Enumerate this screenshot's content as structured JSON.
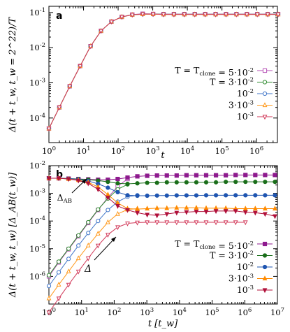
{
  "colors": {
    "T5e-2": "#b44fb4",
    "T3e-2": "#2e8b2e",
    "T1e-2": "#3f74c8",
    "T3e-3": "#ff9a1e",
    "T1e-3": "#d23a5a",
    "panel_a_line": "#c0304f"
  },
  "chart_data": [
    {
      "type": "line",
      "panel_label": "a",
      "xlabel": "t",
      "ylabel": "Δ(t + t_w, t_w = 2^22)/T",
      "xscale": "log",
      "yscale": "log",
      "xlim": [
        1,
        4000000
      ],
      "ylim": [
        2e-05,
        0.15
      ],
      "xticks": [
        "10^0",
        "10^1",
        "10^2",
        "10^3",
        "10^4",
        "10^5",
        "10^6"
      ],
      "yticks": [
        "10^-4",
        "10^-3",
        "10^-2",
        "10^-1"
      ],
      "legend": [
        "T = T_clone = 5·10^-2",
        "T = 3·10^-2",
        "10^-2",
        "3·10^-3",
        "10^-3"
      ],
      "legend_position": "right",
      "series": [
        {
          "name": "T = T_clone = 5·10^-2",
          "color": "#b44fb4",
          "marker": "square-open",
          "x": [
            1,
            2,
            4,
            8,
            16,
            32,
            64,
            128,
            256,
            512,
            1024,
            2048,
            4096,
            8192,
            16384,
            32768,
            65536,
            131072,
            262144,
            524288,
            1048576,
            2097152,
            4194304
          ],
          "y": [
            5e-05,
            0.0002,
            0.0008,
            0.003,
            0.011,
            0.03,
            0.055,
            0.075,
            0.087,
            0.092,
            0.091,
            0.09,
            0.09,
            0.09,
            0.09,
            0.09,
            0.09,
            0.09,
            0.09,
            0.09,
            0.09,
            0.09,
            0.09
          ]
        },
        {
          "name": "T = 3·10^-2",
          "color": "#2e8b2e",
          "marker": "circle-open",
          "x": [
            1,
            2,
            4,
            8,
            16,
            32,
            64,
            128,
            256,
            512,
            1024,
            2048,
            4096,
            8192,
            16384,
            32768,
            65536,
            131072,
            262144,
            524288,
            1048576,
            2097152,
            4194304
          ],
          "y": [
            5e-05,
            0.0002,
            0.0008,
            0.003,
            0.011,
            0.03,
            0.055,
            0.075,
            0.086,
            0.09,
            0.09,
            0.089,
            0.089,
            0.089,
            0.089,
            0.089,
            0.089,
            0.089,
            0.089,
            0.089,
            0.089,
            0.089,
            0.089
          ]
        },
        {
          "name": "10^-2",
          "color": "#3f74c8",
          "marker": "circle-open",
          "x": [
            1,
            2,
            4,
            8,
            16,
            32,
            64,
            128,
            256,
            512,
            1024,
            2048,
            4096,
            8192,
            16384,
            32768,
            65536,
            131072,
            262144,
            524288,
            1048576,
            2097152,
            4194304
          ],
          "y": [
            5e-05,
            0.0002,
            0.0008,
            0.003,
            0.011,
            0.03,
            0.055,
            0.075,
            0.086,
            0.089,
            0.089,
            0.088,
            0.088,
            0.088,
            0.088,
            0.088,
            0.088,
            0.088,
            0.088,
            0.088,
            0.088,
            0.088,
            0.088
          ]
        },
        {
          "name": "3·10^-3",
          "color": "#ff9a1e",
          "marker": "triangle-up-open",
          "x": [
            1,
            2,
            4,
            8,
            16,
            32,
            64,
            128,
            256,
            512,
            1024,
            2048,
            4096,
            8192,
            16384,
            32768,
            65536,
            131072,
            262144,
            524288,
            1048576,
            2097152,
            4194304
          ],
          "y": [
            5e-05,
            0.0002,
            0.0008,
            0.003,
            0.011,
            0.03,
            0.055,
            0.075,
            0.086,
            0.089,
            0.089,
            0.088,
            0.088,
            0.088,
            0.088,
            0.088,
            0.088,
            0.088,
            0.088,
            0.088,
            0.088,
            0.088,
            0.088
          ]
        },
        {
          "name": "10^-3",
          "color": "#d23a5a",
          "marker": "triangle-down-open",
          "x": [
            1,
            2,
            4,
            8,
            16,
            32,
            64,
            128,
            256,
            512,
            1024,
            2048,
            4096,
            8192,
            16384,
            32768,
            65536,
            131072,
            262144,
            524288,
            1048576,
            2097152,
            4194304
          ],
          "y": [
            5e-05,
            0.0002,
            0.0008,
            0.003,
            0.011,
            0.03,
            0.055,
            0.075,
            0.086,
            0.09,
            0.09,
            0.088,
            0.088,
            0.088,
            0.088,
            0.088,
            0.088,
            0.088,
            0.088,
            0.088,
            0.088,
            0.088,
            0.088
          ]
        }
      ]
    },
    {
      "type": "line",
      "panel_label": "b",
      "xlabel": "t [t_w]",
      "ylabel": "Δ(t + t_w, t_w) [Δ_AB(t_w)]",
      "xscale": "log",
      "yscale": "log",
      "xlim": [
        1,
        10000000
      ],
      "ylim": [
        1e-07,
        0.01
      ],
      "xticks": [
        "10^0",
        "10^1",
        "10^2",
        "10^3",
        "10^4",
        "10^5",
        "10^6",
        "10^7"
      ],
      "yticks": [
        "10^-6",
        "10^-5",
        "10^-4",
        "10^-3",
        "10^-2"
      ],
      "legend": [
        "T = T_clone = 5·10^-2",
        "T = 3·10^-2",
        "10^-2",
        "3·10^-3",
        "10^-3"
      ],
      "legend_position": "bottom-right",
      "annotations": [
        "Δ_AB",
        "Δ"
      ],
      "series": [
        {
          "name": "Δ, T = T_clone = 5·10^-2",
          "color": "#b44fb4",
          "marker": "square-open",
          "x": [
            1,
            2,
            4,
            8,
            16,
            32,
            64,
            128,
            256
          ],
          "y": [
            1e-06,
            3.2e-06,
            9.5e-06,
            2.8e-05,
            8.5e-05,
            0.00025,
            0.0007,
            0.0018,
            0.0033
          ]
        },
        {
          "name": "Δ, T = 3·10^-2",
          "color": "#2e8b2e",
          "marker": "circle-open",
          "x": [
            1,
            2,
            4,
            8,
            16,
            32,
            64,
            128,
            256
          ],
          "y": [
            1.1e-06,
            3.4e-06,
            1e-05,
            3e-05,
            9e-05,
            0.00026,
            0.00065,
            0.0014,
            0.0021
          ]
        },
        {
          "name": "Δ, T = 10^-2",
          "color": "#3f74c8",
          "marker": "circle-open",
          "x": [
            1,
            2,
            4,
            8,
            16,
            32,
            64,
            128,
            256,
            512
          ],
          "y": [
            4.5e-07,
            1.4e-06,
            4.3e-06,
            1.3e-05,
            3.7e-05,
            0.0001,
            0.00025,
            0.0005,
            0.00075,
            0.00085
          ]
        },
        {
          "name": "Δ, T = 3·10^-3",
          "color": "#ff9a1e",
          "marker": "triangle-up-open",
          "x": [
            1,
            2,
            4,
            8,
            16,
            32,
            64,
            128,
            256,
            512
          ],
          "y": [
            1.6e-07,
            5e-07,
            1.5e-06,
            4.5e-06,
            1.3e-05,
            3.5e-05,
            9e-05,
            0.00018,
            0.00026,
            0.00028
          ]
        },
        {
          "name": "Δ, T = 10^-3",
          "color": "#d23a5a",
          "marker": "triangle-down-open",
          "x": [
            1,
            2,
            4,
            8,
            16,
            32,
            64,
            128,
            256,
            512,
            1024,
            2048,
            4096,
            8192,
            16384,
            32768,
            65536,
            131072,
            262144,
            524288,
            1048576
          ],
          "y": [
            5e-08,
            1.6e-07,
            5e-07,
            1.5e-06,
            4.5e-06,
            1.3e-05,
            3.2e-05,
            6e-05,
            8.2e-05,
            8.8e-05,
            9e-05,
            9e-05,
            9e-05,
            9e-05,
            9e-05,
            9e-05,
            9e-05,
            9e-05,
            9e-05,
            9e-05,
            9e-05
          ]
        },
        {
          "name": "Δ_AB, T = T_clone = 5·10^-2",
          "color": "#8e1a8e",
          "marker": "square-filled",
          "x": [
            1,
            2,
            4,
            8,
            16,
            32,
            64,
            128,
            256,
            512,
            1024,
            2048,
            4096,
            8192,
            16384,
            32768,
            65536,
            131072,
            262144,
            524288,
            1048576,
            2097152,
            4194304,
            8388608
          ],
          "y": [
            0.0035,
            0.0035,
            0.0034,
            0.0033,
            0.0032,
            0.0031,
            0.0031,
            0.0033,
            0.0037,
            0.0041,
            0.0043,
            0.0044,
            0.0044,
            0.0044,
            0.0045,
            0.0045,
            0.0045,
            0.0045,
            0.0045,
            0.0046,
            0.0046,
            0.0046,
            0.0046,
            0.0046
          ]
        },
        {
          "name": "Δ_AB, T = 3·10^-2",
          "color": "#1a6e1a",
          "marker": "circle-filled",
          "x": [
            1,
            2,
            4,
            8,
            16,
            32,
            64,
            128,
            256,
            512,
            1024,
            2048,
            4096,
            8192,
            16384,
            32768,
            65536,
            131072,
            262144,
            524288,
            1048576,
            2097152,
            4194304,
            8388608
          ],
          "y": [
            0.0035,
            0.0035,
            0.0034,
            0.0033,
            0.0031,
            0.0029,
            0.0026,
            0.0023,
            0.0022,
            0.0023,
            0.0024,
            0.0024,
            0.0025,
            0.0025,
            0.0025,
            0.0025,
            0.0025,
            0.0025,
            0.0026,
            0.0026,
            0.0026,
            0.0026,
            0.0026,
            0.0026
          ]
        },
        {
          "name": "Δ_AB, T = 10^-2",
          "color": "#1f55b0",
          "marker": "circle-filled",
          "x": [
            1,
            2,
            4,
            8,
            16,
            32,
            64,
            128,
            256,
            512,
            1024,
            2048,
            4096,
            8192,
            16384,
            32768,
            65536,
            131072,
            262144,
            524288,
            1048576,
            2097152,
            4194304,
            8388608
          ],
          "y": [
            0.0035,
            0.0035,
            0.0034,
            0.0032,
            0.0028,
            0.0022,
            0.0016,
            0.0011,
            0.00085,
            0.00082,
            0.00082,
            0.00083,
            0.00083,
            0.00084,
            0.00084,
            0.00084,
            0.00085,
            0.00085,
            0.00085,
            0.00085,
            0.00085,
            0.00085,
            0.00085,
            0.00085
          ]
        },
        {
          "name": "Δ_AB, T = 3·10^-3",
          "color": "#ff8a00",
          "marker": "triangle-up-filled",
          "x": [
            1,
            2,
            4,
            8,
            16,
            32,
            64,
            128,
            256,
            512,
            1024,
            2048,
            4096,
            8192,
            16384,
            32768,
            65536,
            131072,
            262144,
            524288,
            1048576,
            2097152,
            4194304,
            8388608
          ],
          "y": [
            0.0035,
            0.0035,
            0.0033,
            0.003,
            0.0025,
            0.0017,
            0.0009,
            0.00045,
            0.00028,
            0.00027,
            0.00028,
            0.00029,
            0.00029,
            0.0003,
            0.0003,
            0.0003,
            0.00029,
            0.00029,
            0.00029,
            0.00028,
            0.00028,
            0.00028,
            0.00028,
            0.00028
          ]
        },
        {
          "name": "Δ_AB, T = 10^-3",
          "color": "#b0103a",
          "marker": "triangle-down-filled",
          "x": [
            1,
            2,
            4,
            8,
            16,
            32,
            64,
            128,
            256,
            512,
            1024,
            2048,
            4096,
            8192,
            16384,
            32768,
            65536,
            131072,
            262144,
            524288,
            1048576,
            2097152,
            4194304,
            8388608
          ],
          "y": [
            0.0035,
            0.0035,
            0.0033,
            0.0029,
            0.0023,
            0.0014,
            0.0007,
            0.00035,
            0.00025,
            0.0002,
            0.00017,
            0.00016,
            0.00018,
            0.0002,
            0.00021,
            0.00022,
            0.00022,
            0.00023,
            0.00023,
            0.00023,
            0.00021,
            0.0002,
            0.00018,
            0.00015
          ]
        }
      ]
    }
  ]
}
